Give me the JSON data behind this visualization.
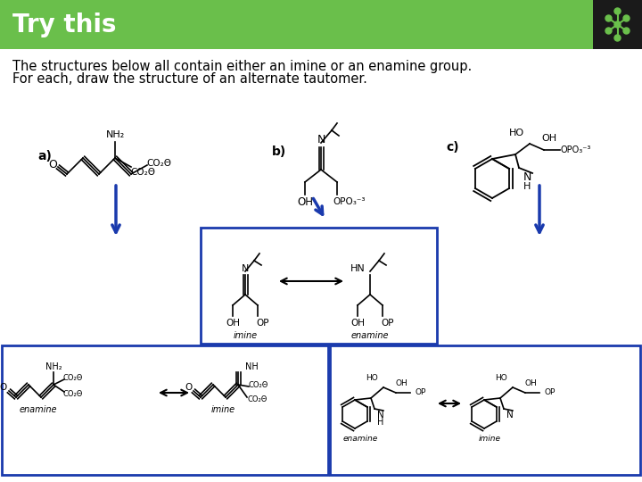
{
  "title": "Try this",
  "title_color": "#ffffff",
  "header_bg": "#6abf4b",
  "body_bg": "#ffffff",
  "subtitle_line1": "The structures below all contain either an imine or an enamine group.",
  "subtitle_line2": "For each, draw the structure of an alternate tautomer.",
  "subtitle_color": "#000000",
  "subtitle_fontsize": 10.5,
  "title_fontsize": 20,
  "box_color_blue": "#1a3aad",
  "arrow_color_blue": "#1a3aad",
  "icon_bg": "#1a1a1a",
  "icon_dot_color": "#6abf4b"
}
